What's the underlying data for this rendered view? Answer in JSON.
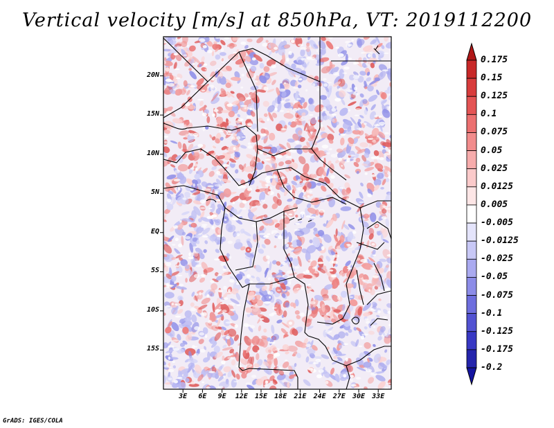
{
  "title": "Vertical velocity [m/s] at 850hPa, VT: 2019112200",
  "footer": "GrADS: IGES/COLA",
  "map": {
    "lon_range": [
      0,
      35
    ],
    "lat_range": [
      -20,
      25
    ],
    "y_ticks": [
      "20N",
      "15N",
      "10N",
      "5N",
      "EQ",
      "5S",
      "10S",
      "15S"
    ],
    "x_ticks": [
      "3E",
      "6E",
      "9E",
      "12E",
      "15E",
      "18E",
      "21E",
      "24E",
      "27E",
      "30E",
      "33E"
    ]
  },
  "colorbar": {
    "labels": [
      "0.175",
      "0.15",
      "0.125",
      "0.1",
      "0.075",
      "0.05",
      "0.025",
      "0.0125",
      "0.005",
      "-0.005",
      "-0.0125",
      "-0.025",
      "-0.05",
      "-0.075",
      "-0.1",
      "-0.125",
      "-0.175",
      "-0.2"
    ],
    "colors": [
      "#b01818",
      "#c82828",
      "#d83c3c",
      "#e45454",
      "#ec7070",
      "#f28c8c",
      "#f7acac",
      "#fbcaca",
      "#fde6e6",
      "#ffffff",
      "#e4e4fb",
      "#c8c8f6",
      "#aaaaf0",
      "#8c8ce8",
      "#6e6ede",
      "#5252d2",
      "#3838c4",
      "#2424ac",
      "#1414a0"
    ]
  }
}
